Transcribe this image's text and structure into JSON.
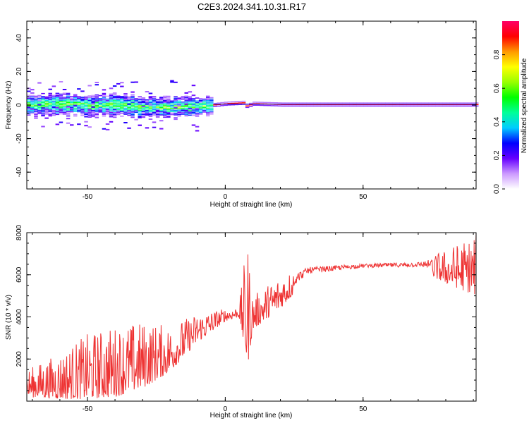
{
  "title": "C2E3.2024.341.10.31.R17",
  "chart_data": [
    {
      "type": "heatmap",
      "title": "C2E3.2024.341.10.31.R17",
      "xlabel": "Height of straight line (km)",
      "ylabel": "Frequency (Hz)",
      "xlim": [
        -72,
        91
      ],
      "ylim": [
        -50,
        50
      ],
      "xticks": [
        -50,
        0,
        50
      ],
      "yticks": [
        -40,
        -20,
        0,
        20,
        40
      ],
      "colorbar": {
        "label": "Normalized spectral amplitude",
        "range": [
          0,
          1
        ],
        "ticks": [
          0.0,
          0.2,
          0.4,
          0.6,
          0.8
        ],
        "colors": [
          "#ffffff",
          "#cc99ff",
          "#6600ff",
          "#0000ff",
          "#00ccff",
          "#00ff99",
          "#00ff00",
          "#99ff00",
          "#ffff00",
          "#ff9900",
          "#ff0000",
          "#ff0066"
        ]
      },
      "ridge": [
        {
          "x": -70,
          "y": 0
        },
        {
          "x": -60,
          "y": 0.5
        },
        {
          "x": -50,
          "y": -0.5
        },
        {
          "x": -40,
          "y": 0
        },
        {
          "x": -30,
          "y": -1.5
        },
        {
          "x": -20,
          "y": -1.5
        },
        {
          "x": -10,
          "y": -1.2
        },
        {
          "x": 0,
          "y": 0.5
        },
        {
          "x": 6,
          "y": 1
        },
        {
          "x": 7,
          "y": -1
        },
        {
          "x": 10,
          "y": 0.5
        },
        {
          "x": 20,
          "y": 0
        },
        {
          "x": 50,
          "y": 0
        },
        {
          "x": 91,
          "y": 0
        }
      ]
    },
    {
      "type": "line",
      "xlabel": "Height of straight line (km)",
      "ylabel": "SNR (10 * v/v)",
      "xlim": [
        -72,
        91
      ],
      "ylim": [
        0,
        8000
      ],
      "xticks": [
        -50,
        0,
        50
      ],
      "yticks": [
        2000,
        4000,
        6000,
        8000
      ],
      "color": "#ee3333",
      "envelope": [
        {
          "x": -72,
          "lo": 200,
          "hi": 1500
        },
        {
          "x": -60,
          "lo": 100,
          "hi": 2300
        },
        {
          "x": -50,
          "lo": 100,
          "hi": 3200
        },
        {
          "x": -40,
          "lo": 200,
          "hi": 3600
        },
        {
          "x": -30,
          "lo": 600,
          "hi": 3800
        },
        {
          "x": -20,
          "lo": 1400,
          "hi": 3600
        },
        {
          "x": -10,
          "lo": 2800,
          "hi": 4200
        },
        {
          "x": 0,
          "lo": 3800,
          "hi": 4400
        },
        {
          "x": 5,
          "lo": 4000,
          "hi": 4500
        },
        {
          "x": 8,
          "lo": 1600,
          "hi": 7800
        },
        {
          "x": 10,
          "lo": 3400,
          "hi": 5000
        },
        {
          "x": 20,
          "lo": 4400,
          "hi": 6000
        },
        {
          "x": 30,
          "lo": 5800,
          "hi": 6500
        },
        {
          "x": 50,
          "lo": 6200,
          "hi": 6600
        },
        {
          "x": 70,
          "lo": 6200,
          "hi": 6700
        },
        {
          "x": 80,
          "lo": 5600,
          "hi": 7200
        },
        {
          "x": 91,
          "lo": 5000,
          "hi": 8000
        }
      ]
    }
  ]
}
